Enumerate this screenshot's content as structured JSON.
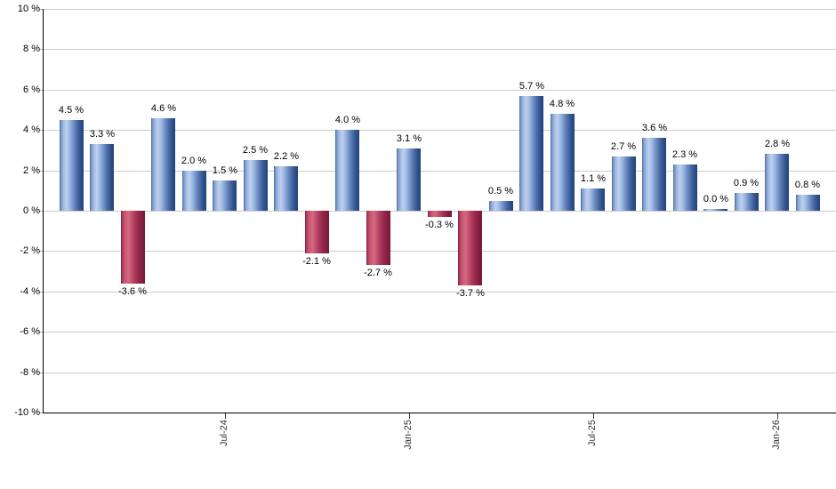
{
  "chart_data": {
    "type": "bar",
    "title": "",
    "unit_suffix": " %",
    "values": [
      4.5,
      3.3,
      -3.6,
      4.6,
      2.0,
      1.5,
      2.5,
      2.2,
      -2.1,
      4.0,
      -2.7,
      3.1,
      -0.3,
      -3.7,
      0.5,
      5.7,
      4.8,
      1.1,
      2.7,
      3.6,
      2.3,
      0.0,
      0.9,
      2.8,
      0.8
    ],
    "value_labels": [
      "4.5 %",
      "3.3 %",
      "-3.6 %",
      "4.6 %",
      "2.0 %",
      "1.5 %",
      "2.5 %",
      "2.2 %",
      "-2.1 %",
      "4.0 %",
      "-2.7 %",
      "3.1 %",
      "-0.3 %",
      "-3.7 %",
      "0.5 %",
      "5.7 %",
      "4.8 %",
      "1.1 %",
      "2.7 %",
      "3.6 %",
      "2.3 %",
      "0.0 %",
      "0.9 %",
      "2.8 %",
      "0.8 %"
    ],
    "y_axis": {
      "min": -10,
      "max": 10,
      "step": 2,
      "tick_labels": [
        "10 %",
        "8 %",
        "6 %",
        "4 %",
        "2 %",
        "0 %",
        "-2 %",
        "-4 %",
        "-6 %",
        "-8 %",
        "-10 %"
      ]
    },
    "x_axis": {
      "tick_labels": [
        "Jul-24",
        "Jan-25",
        "Jul-25",
        "Jan-26"
      ],
      "tick_bar_indices": [
        5,
        11,
        17,
        23
      ]
    },
    "grid": true,
    "legend": "none",
    "colors": {
      "positive_gradient": [
        "#3d5c92",
        "#7090c5",
        "#a3badf",
        "#bdd1ef",
        "#9db7e1",
        "#7394c9",
        "#4d6da8",
        "#30508a",
        "#23437c"
      ],
      "negative_gradient": [
        "#7c1a37",
        "#ab3a59",
        "#c95a75",
        "#d4687f",
        "#bf4d6b",
        "#a23154",
        "#8c2346",
        "#801c3b",
        "#7a1936"
      ],
      "gridline": "#cccccc",
      "axis": "#000000",
      "value_label_text": "#000000",
      "y_tick_label_text": "#000000",
      "x_tick_label_text": "#333333"
    }
  }
}
